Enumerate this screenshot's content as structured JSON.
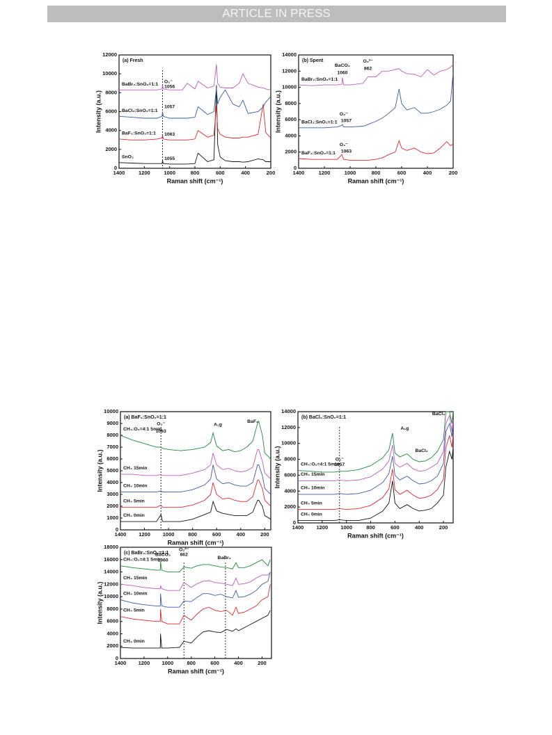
{
  "header": "ARTICLE IN PRESS",
  "chart_data": [
    {
      "type": "line",
      "title": "(a) Fresh",
      "x_label": "Raman shift (cm⁻¹)",
      "y_label": "Intensity (a.u.)",
      "xlim": [
        1400,
        200
      ],
      "xticks": [
        1400,
        1200,
        1000,
        800,
        600,
        400,
        200
      ],
      "ylim": [
        0,
        12000
      ],
      "yticks": [
        0,
        2000,
        4000,
        6000,
        8000,
        10000,
        12000
      ],
      "x": [
        1400,
        1300,
        1200,
        1100,
        1060,
        1056,
        1050,
        1000,
        900,
        860,
        800,
        775,
        700,
        650,
        630,
        620,
        600,
        560,
        500,
        450,
        420,
        380,
        300,
        260,
        240,
        200
      ],
      "series": [
        {
          "name": "SnO₂",
          "color": "#111111",
          "values": [
            600,
            550,
            500,
            500,
            500,
            800,
            500,
            450,
            450,
            450,
            500,
            1600,
            700,
            900,
            8800,
            2500,
            1200,
            800,
            700,
            700,
            650,
            700,
            1000,
            900,
            700,
            700
          ]
        },
        {
          "name": "BaF₂:SnO₂=1:1",
          "color": "#e3262b",
          "values": [
            3100,
            3000,
            3000,
            3100,
            3200,
            3500,
            3100,
            3000,
            3000,
            3000,
            3100,
            4000,
            3300,
            3500,
            6600,
            4200,
            3600,
            3300,
            3200,
            3200,
            3300,
            3300,
            3600,
            6800,
            3800,
            3200
          ]
        },
        {
          "name": "BaCl₂:SnO₂=1:1",
          "color": "#3a5ba8",
          "values": [
            5500,
            5400,
            5300,
            5300,
            5500,
            6000,
            5500,
            5300,
            5300,
            5300,
            5400,
            6500,
            5700,
            6000,
            8500,
            6800,
            7500,
            8300,
            6800,
            6500,
            7200,
            5800,
            6000,
            6500,
            7000,
            7600
          ]
        },
        {
          "name": "BaBr₂:SnO₂=1:1",
          "color": "#c05ac0",
          "values": [
            8300,
            8300,
            8300,
            8300,
            8400,
            8800,
            8400,
            8300,
            8300,
            9000,
            8400,
            9200,
            8500,
            8700,
            11000,
            9000,
            8600,
            8500,
            8500,
            9000,
            10000,
            9000,
            8600,
            8500,
            8400,
            8300
          ]
        }
      ],
      "vlines": [
        1056
      ],
      "annotations": [
        "O₂⁻",
        "1056",
        "1057",
        "1063",
        "1055"
      ]
    },
    {
      "type": "line",
      "title": "(b) Spent",
      "x_label": "Raman shift (cm⁻¹)",
      "y_label": "Intensity (a.u.)",
      "xlim": [
        1400,
        200
      ],
      "xticks": [
        1400,
        1200,
        1000,
        800,
        600,
        400,
        200
      ],
      "ylim": [
        0,
        14000
      ],
      "yticks": [
        0,
        2000,
        4000,
        6000,
        8000,
        10000,
        12000,
        14000
      ],
      "x": [
        1400,
        1300,
        1200,
        1100,
        1063,
        1060,
        1050,
        1000,
        900,
        862,
        800,
        750,
        700,
        650,
        620,
        600,
        560,
        500,
        450,
        400,
        350,
        300,
        250,
        220,
        200
      ],
      "series": [
        {
          "name": "BaF₂:SnO₂=1:1",
          "color": "#e3262b",
          "values": [
            1200,
            1100,
            1100,
            1100,
            1700,
            1500,
            1100,
            1000,
            1000,
            1000,
            1100,
            1300,
            1700,
            2000,
            3400,
            2500,
            2200,
            2500,
            2000,
            1800,
            1900,
            2500,
            3300,
            2800,
            3000
          ]
        },
        {
          "name": "BaCl₂:SnO₂=1:1",
          "color": "#3a5ba8",
          "values": [
            5000,
            5000,
            5000,
            5100,
            5300,
            5400,
            5100,
            5100,
            5200,
            5400,
            5800,
            6200,
            6800,
            7500,
            9800,
            8000,
            7200,
            7500,
            6800,
            6800,
            7000,
            7300,
            7800,
            8300,
            11800
          ]
        },
        {
          "name": "BaBr₂:SnO₂=1:1",
          "color": "#c05ac0",
          "values": [
            10300,
            10200,
            10300,
            10300,
            10400,
            11200,
            10300,
            10300,
            10500,
            11300,
            11300,
            12000,
            12000,
            12200,
            12300,
            12000,
            11700,
            11600,
            11300,
            12200,
            11500,
            12000,
            12200,
            12500,
            12800
          ]
        }
      ],
      "vlines": [],
      "annotations": [
        "BaCO₃",
        "1060",
        "O₂²⁻",
        "862",
        "O₂⁻",
        "1057",
        "O₂⁻",
        "1063"
      ]
    },
    {
      "type": "line",
      "title": "(a) BaF₂:SnO₂=1:1",
      "x_label": "Raman shift (cm⁻¹)",
      "y_label": "Intensity (a.u.)",
      "xlim": [
        1400,
        150
      ],
      "xticks": [
        1400,
        1200,
        1000,
        800,
        600,
        400,
        200
      ],
      "ylim": [
        0,
        10000
      ],
      "yticks": [
        0,
        1000,
        2000,
        3000,
        4000,
        5000,
        6000,
        7000,
        8000,
        9000,
        10000
      ],
      "x": [
        1400,
        1300,
        1200,
        1100,
        1063,
        1050,
        1000,
        900,
        800,
        700,
        650,
        630,
        600,
        550,
        500,
        450,
        400,
        350,
        300,
        260,
        250,
        220,
        200,
        150
      ],
      "series": [
        {
          "name": "CH₄ 0min",
          "color": "#111111",
          "values": [
            700,
            700,
            700,
            700,
            1300,
            700,
            700,
            700,
            900,
            1300,
            1500,
            2400,
            1600,
            1400,
            1300,
            1200,
            1200,
            1200,
            1500,
            2500,
            2500,
            2000,
            1200,
            900
          ]
        },
        {
          "name": "CH₄ 5min",
          "color": "#e3262b",
          "values": [
            1900,
            1900,
            1900,
            1900,
            2100,
            1900,
            1900,
            1900,
            2100,
            2500,
            3000,
            4000,
            3000,
            2600,
            2700,
            2500,
            2400,
            2400,
            2800,
            4200,
            4200,
            3500,
            2500,
            2000
          ]
        },
        {
          "name": "CH₄ 10min",
          "color": "#3a5ba8",
          "values": [
            3200,
            3200,
            3200,
            3200,
            3300,
            3200,
            3200,
            3200,
            3400,
            3800,
            4300,
            5500,
            4300,
            3900,
            4000,
            3800,
            3700,
            3700,
            4000,
            5500,
            5500,
            4600,
            3500,
            3000
          ]
        },
        {
          "name": "CH₄ 15min",
          "color": "#c05ac0",
          "values": [
            4700,
            4700,
            4600,
            4600,
            4700,
            4600,
            4600,
            4600,
            4800,
            5100,
            5500,
            6500,
            5500,
            5100,
            5200,
            5000,
            4900,
            5000,
            5300,
            6800,
            6800,
            5800,
            4800,
            4300
          ]
        },
        {
          "name": "CH₄:O₂=4:1 5min",
          "color": "#1e8a3c",
          "values": [
            8000,
            7600,
            7300,
            7000,
            7000,
            6900,
            6800,
            6700,
            6800,
            7000,
            7400,
            8200,
            7100,
            6700,
            6800,
            6600,
            6700,
            7000,
            7500,
            9000,
            9200,
            8000,
            6500,
            6000
          ]
        }
      ],
      "vlines": [
        1063
      ],
      "annotations": [
        "O₂⁻",
        "1063",
        "A₁g",
        "BaF₂"
      ]
    },
    {
      "type": "line",
      "title": "(b) BaCl₂:SnO₂=1:1",
      "x_label": "Raman shift (cm⁻¹)",
      "y_label": "Intensity (a.u.)",
      "xlim": [
        1400,
        120
      ],
      "xticks": [
        1400,
        1200,
        1000,
        800,
        600,
        400,
        200
      ],
      "ylim": [
        0,
        14000
      ],
      "yticks": [
        0,
        2000,
        4000,
        6000,
        8000,
        10000,
        12000,
        14000
      ],
      "x": [
        1400,
        1300,
        1200,
        1100,
        1057,
        1000,
        900,
        800,
        700,
        650,
        620,
        600,
        560,
        500,
        450,
        400,
        350,
        300,
        250,
        200,
        180,
        150,
        130,
        120
      ],
      "series": [
        {
          "name": "CH₄ 0min",
          "color": "#111111",
          "values": [
            300,
            300,
            300,
            300,
            400,
            300,
            300,
            600,
            1500,
            2500,
            5300,
            2500,
            1800,
            2300,
            1800,
            1500,
            1600,
            1800,
            2500,
            3500,
            7000,
            9000,
            8000,
            9500
          ]
        },
        {
          "name": "CH₄ 5min",
          "color": "#e3262b",
          "values": [
            1700,
            1700,
            1700,
            1700,
            1800,
            1700,
            1800,
            2200,
            3200,
            4300,
            6800,
            4200,
            3600,
            4100,
            3500,
            3100,
            3200,
            3500,
            4200,
            5500,
            9500,
            11000,
            9500,
            11000
          ]
        },
        {
          "name": "CH₄ 10min",
          "color": "#3a5ba8",
          "values": [
            3600,
            3600,
            3600,
            3600,
            3700,
            3600,
            3700,
            4100,
            5100,
            6200,
            8400,
            6000,
            5400,
            5900,
            5300,
            4900,
            5000,
            5300,
            5900,
            7500,
            11500,
            12500,
            10800,
            12500
          ]
        },
        {
          "name": "CH₄ 15min",
          "color": "#c05ac0",
          "values": [
            5300,
            5300,
            5300,
            5300,
            5400,
            5300,
            5400,
            5800,
            6800,
            7800,
            9800,
            7500,
            7000,
            7500,
            6800,
            6500,
            6600,
            7000,
            7500,
            9000,
            12500,
            13500,
            11500,
            13000
          ]
        },
        {
          "name": "CH₄:O₂=4:1 5min",
          "color": "#1e8a3c",
          "values": [
            6600,
            6500,
            6400,
            6400,
            6500,
            6500,
            6700,
            7200,
            8200,
            9200,
            11300,
            8800,
            8300,
            8700,
            8000,
            7700,
            7800,
            8200,
            9000,
            10500,
            14000,
            14000,
            12500,
            14000
          ]
        }
      ],
      "vlines": [
        1057
      ],
      "annotations": [
        "O₂⁻",
        "1057",
        "A₁g",
        "BaCl₂",
        "BaCl₂"
      ]
    },
    {
      "type": "line",
      "title": "(c) BaBr₂:SnO₂=1:1",
      "x_label": "Raman shift (cm⁻¹)",
      "y_label": "Intensity (a.u.)",
      "xlim": [
        1400,
        120
      ],
      "xticks": [
        1400,
        1200,
        1000,
        800,
        600,
        400,
        200
      ],
      "ylim": [
        0,
        18000
      ],
      "yticks": [
        0,
        2000,
        4000,
        6000,
        8000,
        10000,
        12000,
        14000,
        16000,
        18000
      ],
      "x": [
        1400,
        1300,
        1200,
        1100,
        1062,
        1060,
        1050,
        1000,
        900,
        862,
        800,
        750,
        700,
        650,
        600,
        550,
        500,
        450,
        420,
        400,
        350,
        300,
        250,
        200,
        150,
        130
      ],
      "series": [
        {
          "name": "CH₄ 0min",
          "color": "#111111",
          "values": [
            1800,
            1700,
            1700,
            1700,
            1700,
            4000,
            1700,
            1700,
            1800,
            2800,
            2500,
            3500,
            4300,
            4500,
            4300,
            4200,
            4700,
            4400,
            4800,
            4500,
            5000,
            5500,
            6000,
            6500,
            7000,
            7800
          ]
        },
        {
          "name": "CH₄ 5min",
          "color": "#e3262b",
          "values": [
            6800,
            6400,
            6200,
            6000,
            6000,
            8000,
            6000,
            5600,
            5600,
            7000,
            6200,
            7200,
            8000,
            8300,
            7800,
            7600,
            7800,
            7000,
            8300,
            7300,
            7500,
            8000,
            8500,
            9500,
            10000,
            12000
          ]
        },
        {
          "name": "CH₄ 10min",
          "color": "#3a5ba8",
          "values": [
            9500,
            9000,
            8700,
            8500,
            8500,
            10500,
            8500,
            8300,
            8300,
            9300,
            9200,
            9900,
            10500,
            10500,
            10200,
            10400,
            10000,
            9800,
            11000,
            9900,
            10000,
            10400,
            11000,
            12000,
            12500,
            14000
          ]
        },
        {
          "name": "CH₄ 15min",
          "color": "#c05ac0",
          "values": [
            12000,
            11800,
            11500,
            11300,
            11300,
            11800,
            11300,
            11000,
            11000,
            12300,
            11500,
            12100,
            12500,
            12600,
            12300,
            12200,
            12000,
            11800,
            13000,
            12000,
            12100,
            12400,
            13000,
            13500,
            13500,
            14000
          ]
        },
        {
          "name": "CH₄:O₂=4:1 5min",
          "color": "#1e8a3c",
          "values": [
            15000,
            14700,
            14500,
            14300,
            14300,
            15700,
            14300,
            14000,
            14000,
            14800,
            14600,
            15000,
            15200,
            15200,
            15000,
            14800,
            14700,
            14500,
            15500,
            14700,
            14700,
            15000,
            15500,
            16000,
            15000,
            16000
          ]
        }
      ],
      "vlines": [
        862,
        510
      ],
      "annotations": [
        "BaCO₃",
        "1060",
        "O₂²⁻",
        "862",
        "BaBr₂"
      ]
    }
  ]
}
